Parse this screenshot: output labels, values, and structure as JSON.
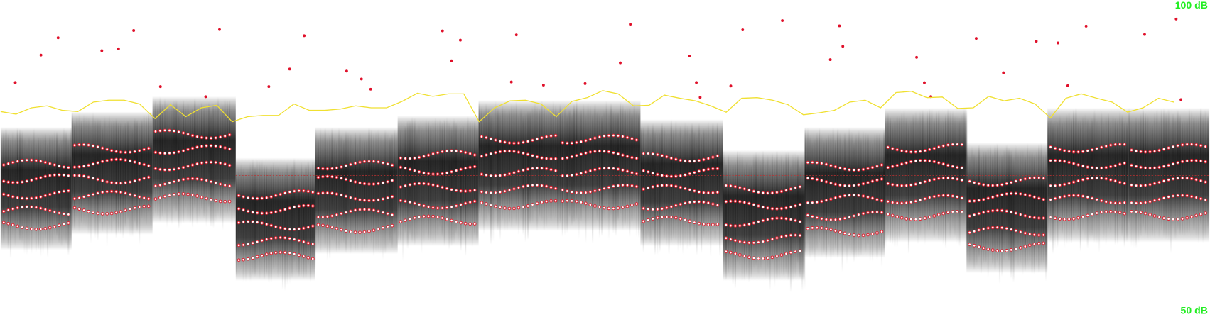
{
  "chart_data": {
    "type": "line",
    "ylim": [
      50,
      100
    ],
    "yticks": [
      {
        "value": 100,
        "label": "100 dB"
      },
      {
        "value": 50,
        "label": "50 dB"
      }
    ],
    "color": "#f0e030",
    "values": [
      82.4,
      82.0,
      83.0,
      83.3,
      82.6,
      82.4,
      83.9,
      84.2,
      84.2,
      83.6,
      81.3,
      83.5,
      81.6,
      83.0,
      83.4,
      80.8,
      81.6,
      81.8,
      81.8,
      83.6,
      82.6,
      82.6,
      82.8,
      83.3,
      83.0,
      83.0,
      84.0,
      85.3,
      84.8,
      85.2,
      85.2,
      80.8,
      83.0,
      84.1,
      84.2,
      83.6,
      81.6,
      84.0,
      84.6,
      85.7,
      85.2,
      83.3,
      83.4,
      85.0,
      84.5,
      84.1,
      83.3,
      82.3,
      84.5,
      84.6,
      84.2,
      83.5,
      81.9,
      82.2,
      82.6,
      83.9,
      84.2,
      83.0,
      85.4,
      85.6,
      84.6,
      84.7,
      82.9,
      83.0,
      84.8,
      84.1,
      84.5,
      83.6,
      81.4,
      84.5,
      85.2,
      84.5,
      83.9,
      82.3,
      83.0,
      84.5,
      83.9
    ]
  }
}
